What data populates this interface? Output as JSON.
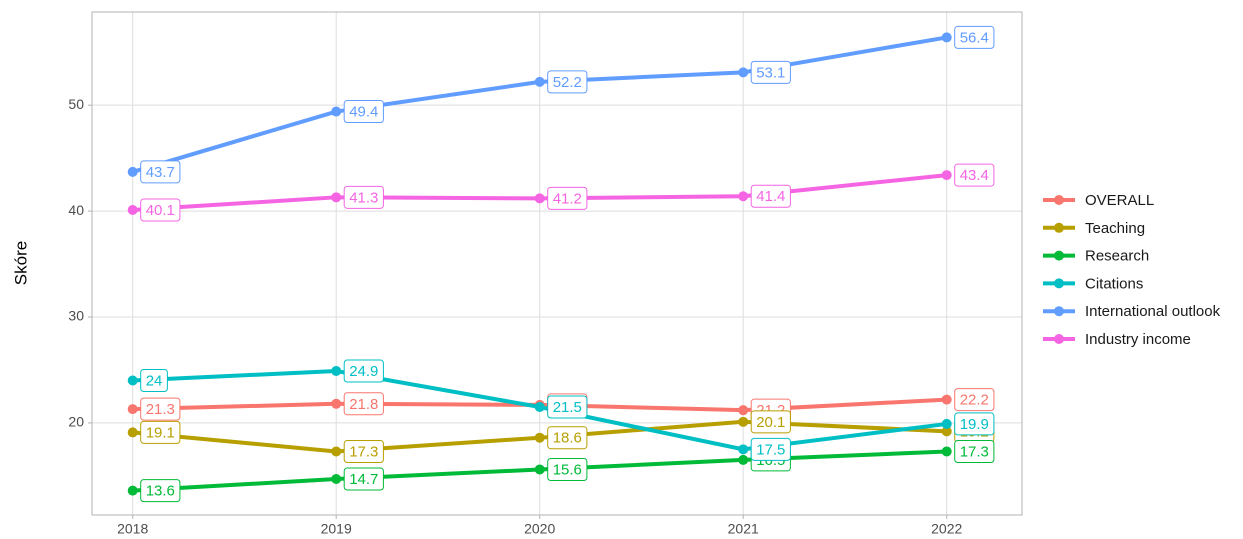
{
  "chart_data": {
    "type": "line",
    "y_label": "Skóre",
    "x": [
      2018,
      2019,
      2020,
      2021,
      2022
    ],
    "xlim": [
      2017.8,
      2022.37
    ],
    "xticks": [
      2018,
      2019,
      2020,
      2021,
      2022
    ],
    "ylim": [
      11.3,
      58.8
    ],
    "yticks": [
      20,
      30,
      40,
      50
    ],
    "grid": true,
    "legend": "right",
    "series": [
      {
        "name": "OVERALL",
        "color": "#F8766D",
        "values": [
          21.3,
          21.8,
          21.7,
          21.2,
          22.2
        ]
      },
      {
        "name": "Teaching",
        "color": "#B79F00",
        "values": [
          19.1,
          17.3,
          18.6,
          20.1,
          19.2
        ]
      },
      {
        "name": "Research",
        "color": "#00BA38",
        "values": [
          13.6,
          14.7,
          15.6,
          16.5,
          17.3
        ]
      },
      {
        "name": "Citations",
        "color": "#00BFC4",
        "values": [
          24,
          24.9,
          21.5,
          17.5,
          19.9
        ]
      },
      {
        "name": "International outlook",
        "color": "#619CFF",
        "values": [
          43.7,
          49.4,
          52.2,
          53.1,
          56.4
        ]
      },
      {
        "name": "Industry income",
        "color": "#F564E3",
        "values": [
          40.1,
          41.3,
          41.2,
          41.4,
          43.4
        ]
      }
    ]
  }
}
